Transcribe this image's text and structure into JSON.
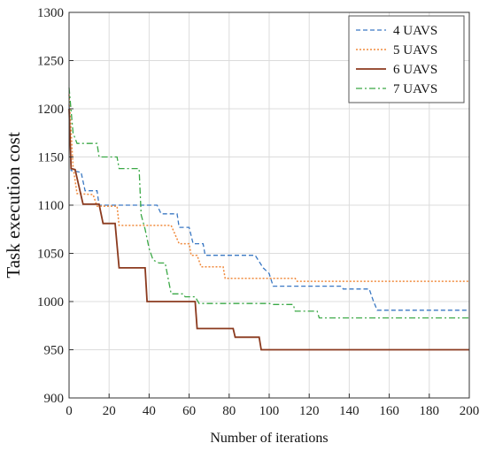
{
  "chart_data": {
    "type": "line",
    "xlabel": "Number of iterations",
    "ylabel": "Task execution cost",
    "xlim": [
      0,
      200
    ],
    "ylim": [
      900,
      1300
    ],
    "xticks": [
      0,
      20,
      40,
      60,
      80,
      100,
      120,
      140,
      160,
      180,
      200
    ],
    "yticks": [
      900,
      950,
      1000,
      1050,
      1100,
      1150,
      1200,
      1250,
      1300
    ],
    "grid": true,
    "legend_position": "top-right",
    "series": [
      {
        "name": "4 UAVS",
        "color": "#3a78c3",
        "style": "dashed",
        "points": [
          [
            0,
            1205
          ],
          [
            1,
            1136
          ],
          [
            6,
            1134
          ],
          [
            8,
            1115
          ],
          [
            14,
            1115
          ],
          [
            15,
            1100
          ],
          [
            44,
            1100
          ],
          [
            46,
            1091
          ],
          [
            54,
            1091
          ],
          [
            55,
            1077
          ],
          [
            60,
            1077
          ],
          [
            62,
            1060
          ],
          [
            67,
            1060
          ],
          [
            68,
            1048
          ],
          [
            93,
            1048
          ],
          [
            97,
            1035
          ],
          [
            100,
            1029
          ],
          [
            102,
            1016
          ],
          [
            136,
            1016
          ],
          [
            137,
            1013
          ],
          [
            150,
            1013
          ],
          [
            152,
            1001
          ],
          [
            154,
            991
          ],
          [
            200,
            991
          ]
        ]
      },
      {
        "name": "5 UAVS",
        "color": "#f08a3c",
        "style": "dotted",
        "points": [
          [
            0,
            1215
          ],
          [
            2,
            1140
          ],
          [
            4,
            1112
          ],
          [
            12,
            1111
          ],
          [
            14,
            1099
          ],
          [
            24,
            1099
          ],
          [
            25,
            1079
          ],
          [
            51,
            1079
          ],
          [
            55,
            1060
          ],
          [
            60,
            1060
          ],
          [
            61,
            1048
          ],
          [
            64,
            1048
          ],
          [
            66,
            1036
          ],
          [
            77,
            1036
          ],
          [
            78,
            1024
          ],
          [
            113,
            1024
          ],
          [
            114,
            1021
          ],
          [
            200,
            1021
          ]
        ]
      },
      {
        "name": "6 UAVS",
        "color": "#8b3a1e",
        "style": "solid",
        "points": [
          [
            0,
            1200
          ],
          [
            1,
            1138
          ],
          [
            3,
            1137
          ],
          [
            7,
            1101
          ],
          [
            15,
            1101
          ],
          [
            17,
            1081
          ],
          [
            23,
            1081
          ],
          [
            25,
            1035
          ],
          [
            38,
            1035
          ],
          [
            39,
            1000
          ],
          [
            63,
            1000
          ],
          [
            64,
            972
          ],
          [
            82,
            972
          ],
          [
            83,
            963
          ],
          [
            95,
            963
          ],
          [
            96,
            950
          ],
          [
            200,
            950
          ]
        ]
      },
      {
        "name": "7 UAVS",
        "color": "#3aa845",
        "style": "dashdot",
        "points": [
          [
            0,
            1222
          ],
          [
            2,
            1175
          ],
          [
            4,
            1164
          ],
          [
            14,
            1164
          ],
          [
            15,
            1150
          ],
          [
            24,
            1150
          ],
          [
            25,
            1138
          ],
          [
            35,
            1138
          ],
          [
            36,
            1090
          ],
          [
            38,
            1075
          ],
          [
            40,
            1055
          ],
          [
            42,
            1043
          ],
          [
            45,
            1040
          ],
          [
            48,
            1040
          ],
          [
            51,
            1008
          ],
          [
            57,
            1008
          ],
          [
            58,
            1005
          ],
          [
            63,
            1005
          ],
          [
            65,
            998
          ],
          [
            100,
            998
          ],
          [
            102,
            997
          ],
          [
            112,
            997
          ],
          [
            113,
            990
          ],
          [
            124,
            990
          ],
          [
            125,
            983
          ],
          [
            200,
            983
          ]
        ]
      }
    ]
  }
}
